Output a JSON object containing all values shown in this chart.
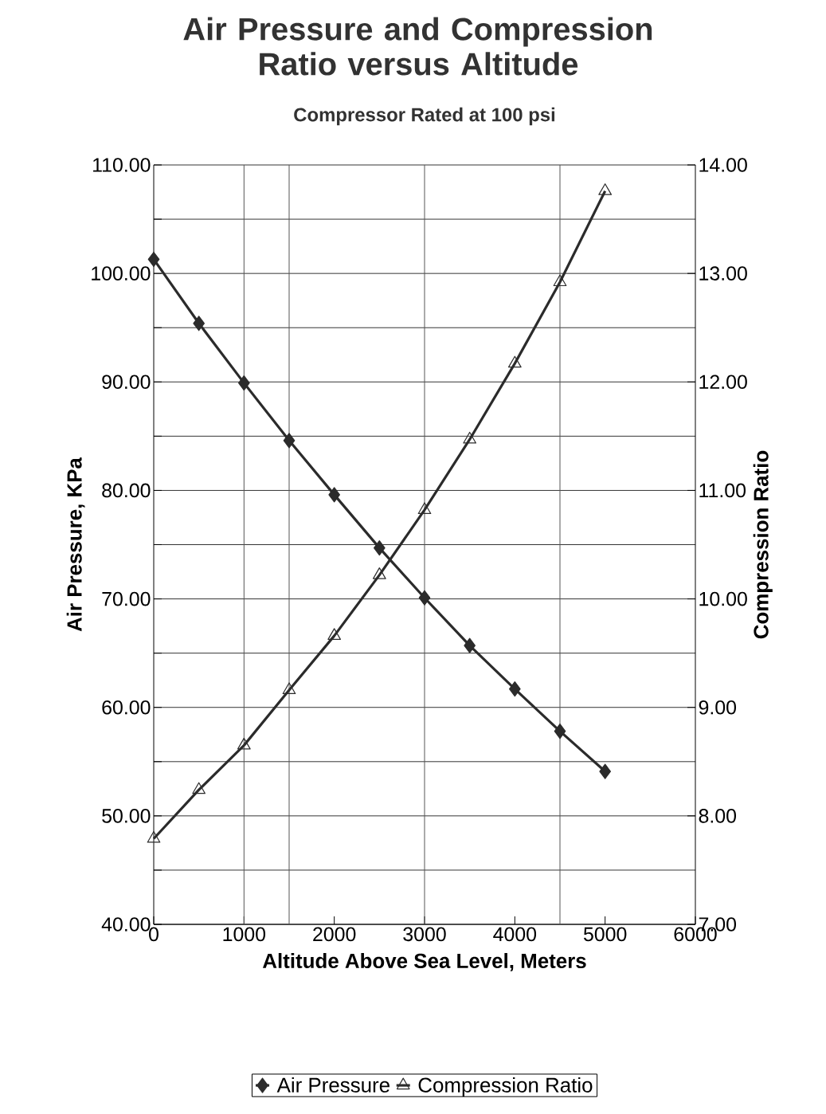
{
  "chart_data": {
    "type": "line",
    "title": "Air Pressure and Compression Ratio versus Altitude",
    "subtitle": "Compressor Rated at 100 psi",
    "xlabel": "Altitude Above Sea Level, Meters",
    "ylabel": "Air Pressure, KPa",
    "y2label": "Compression Ratio",
    "x": [
      0,
      500,
      1000,
      1500,
      2000,
      2500,
      3000,
      3500,
      4000,
      4500,
      5000
    ],
    "series": [
      {
        "name": "Air Pressure",
        "color": "#2b2b2b",
        "marker": "diamond",
        "values": [
          101.3,
          95.4,
          89.9,
          84.6,
          79.6,
          74.7,
          70.1,
          65.7,
          61.7,
          57.8,
          54.1
        ]
      },
      {
        "name": "Compression Ratio",
        "color": "#2b2b2b",
        "marker": "triangle",
        "axis": "y2",
        "values": [
          7.79,
          8.24,
          8.65,
          9.16,
          9.66,
          10.22,
          10.82,
          11.47,
          12.17,
          12.92,
          13.76
        ]
      }
    ],
    "xlim": [
      0,
      6000
    ],
    "xticks": [
      0,
      1000,
      2000,
      3000,
      4000,
      5000,
      6000
    ],
    "ylim": [
      40,
      110
    ],
    "yticks": [
      {
        "value": 40,
        "label": "40.00"
      },
      {
        "value": 45,
        "label": null
      },
      {
        "value": 50,
        "label": "50.00"
      },
      {
        "value": 55,
        "label": null
      },
      {
        "value": 60,
        "label": "60.00"
      },
      {
        "value": 65,
        "label": null
      },
      {
        "value": 70,
        "label": "70.00"
      },
      {
        "value": 75,
        "label": null
      },
      {
        "value": 80,
        "label": "80.00"
      },
      {
        "value": 85,
        "label": null
      },
      {
        "value": 90,
        "label": "90.00"
      },
      {
        "value": 95,
        "label": null
      },
      {
        "value": 100,
        "label": "100.00"
      },
      {
        "value": 105,
        "label": null
      },
      {
        "value": 110,
        "label": "110.00"
      }
    ],
    "y2lim": [
      7,
      14
    ],
    "y2ticks": [
      {
        "value": 7,
        "label": "7.00"
      },
      {
        "value": 8,
        "label": "8.00"
      },
      {
        "value": 9,
        "label": "9.00"
      },
      {
        "value": 10,
        "label": "10.00"
      },
      {
        "value": 11,
        "label": "11.00"
      },
      {
        "value": 12,
        "label": "12.00"
      },
      {
        "value": 13,
        "label": "13.00"
      },
      {
        "value": 14,
        "label": "14.00"
      }
    ],
    "ref_lines": [
      {
        "axis": "x",
        "value": 1000,
        "color": "#555555"
      },
      {
        "axis": "x",
        "value": 1500,
        "color": "#555555"
      },
      {
        "axis": "x",
        "value": 3000,
        "color": "#555555"
      },
      {
        "axis": "x",
        "value": 4500,
        "color": "#555555"
      }
    ],
    "grid": "y",
    "legend": "bottom",
    "line_style": "solid"
  }
}
